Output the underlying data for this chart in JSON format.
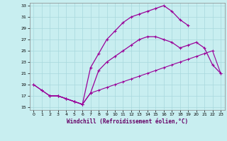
{
  "bg_color": "#c8eef0",
  "grid_color": "#a8d8dc",
  "line_color": "#990099",
  "xlabel": "Windchill (Refroidissement éolien,°C)",
  "xlim": [
    -0.5,
    23.5
  ],
  "ylim": [
    14.5,
    33.5
  ],
  "yticks": [
    15,
    17,
    19,
    21,
    23,
    25,
    27,
    29,
    31,
    33
  ],
  "xticks": [
    0,
    1,
    2,
    3,
    4,
    5,
    6,
    7,
    8,
    9,
    10,
    11,
    12,
    13,
    14,
    15,
    16,
    17,
    18,
    19,
    20,
    21,
    22,
    23
  ],
  "line1_x": [
    0,
    1,
    2,
    3,
    4,
    5,
    6,
    7,
    8,
    9,
    10,
    11,
    12,
    13,
    14,
    15,
    16,
    17,
    18,
    19,
    20,
    21,
    22,
    23
  ],
  "line1_y": [
    19.0,
    18.0,
    17.0,
    17.0,
    16.5,
    16.0,
    15.5,
    17.5,
    18.0,
    18.5,
    19.0,
    19.5,
    20.0,
    20.5,
    21.0,
    21.5,
    22.0,
    22.5,
    23.0,
    23.5,
    24.0,
    24.5,
    25.0,
    21.0
  ],
  "line2_x": [
    0,
    1,
    2,
    3,
    4,
    5,
    6,
    7,
    8,
    9,
    10,
    11,
    12,
    13,
    14,
    15,
    16,
    17,
    18,
    19,
    20,
    21,
    22,
    23
  ],
  "line2_y": [
    19.0,
    18.0,
    17.0,
    17.0,
    16.5,
    16.0,
    15.5,
    22.0,
    24.5,
    27.0,
    28.5,
    30.0,
    31.0,
    31.5,
    32.0,
    32.5,
    33.0,
    32.0,
    30.5,
    29.5,
    null,
    null,
    null,
    null
  ],
  "line3_x": [
    2,
    3,
    4,
    5,
    6,
    7,
    8,
    9,
    10,
    11,
    12,
    13,
    14,
    15,
    16,
    17,
    18,
    19,
    20,
    21,
    22,
    23
  ],
  "line3_y": [
    17.0,
    17.0,
    16.5,
    16.0,
    15.5,
    17.5,
    21.5,
    23.0,
    24.0,
    25.0,
    26.0,
    27.0,
    27.5,
    27.5,
    27.0,
    26.5,
    25.5,
    26.0,
    26.5,
    25.5,
    22.5,
    21.0
  ]
}
